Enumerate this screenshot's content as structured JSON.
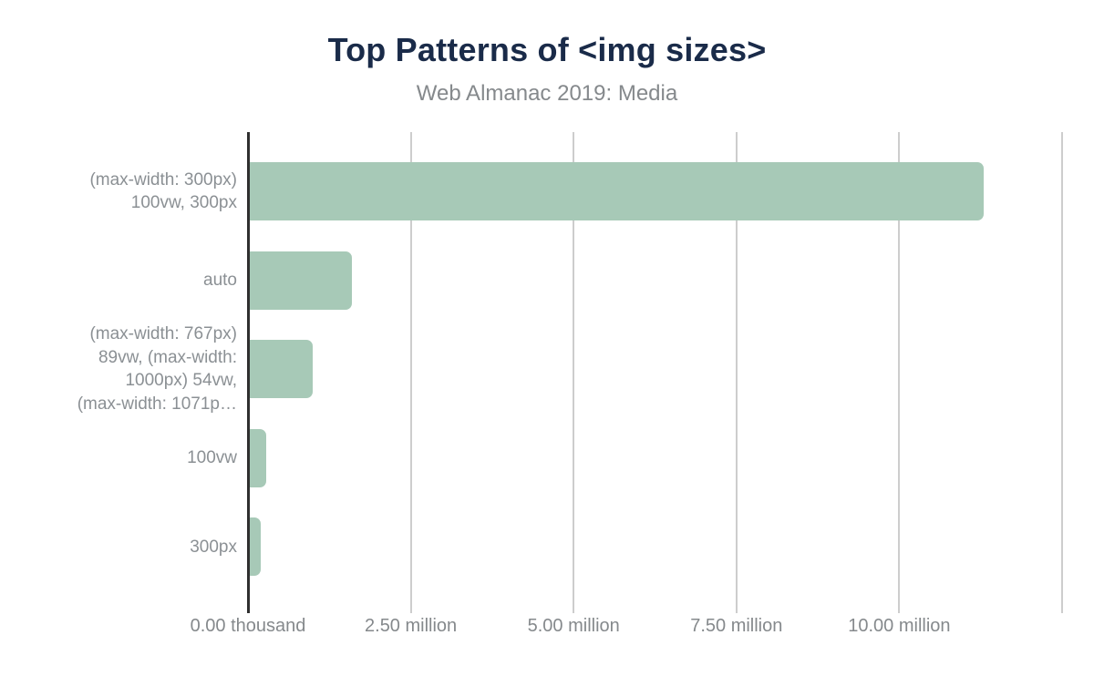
{
  "header": {
    "title": "Top Patterns of <img sizes>",
    "subtitle": "Web Almanac 2019: Media"
  },
  "chart_data": {
    "type": "bar",
    "orientation": "horizontal",
    "title": "Top Patterns of <img sizes>",
    "subtitle": "Web Almanac 2019: Media",
    "categories": [
      "(max-width: 300px) 100vw, 300px",
      "auto",
      "(max-width: 767px) 89vw, (max-width: 1000px) 54vw, (max-width: 1071p…",
      "100vw",
      "300px"
    ],
    "category_label_lines": [
      [
        "(max-width: 300px)",
        "100vw, 300px"
      ],
      [
        "auto"
      ],
      [
        "(max-width: 767px)",
        "89vw, (max-width:",
        "1000px) 54vw,",
        "(max-width: 1071p…"
      ],
      [
        "100vw"
      ],
      [
        "300px"
      ]
    ],
    "values": [
      11300000,
      1600000,
      1000000,
      280000,
      190000
    ],
    "xlabel": "",
    "ylabel": "",
    "xlim": [
      0,
      12780000
    ],
    "x_ticks": [
      {
        "value": 0,
        "label": "0.00 thousand"
      },
      {
        "value": 2500000,
        "label": "2.50 million"
      },
      {
        "value": 5000000,
        "label": "5.00 million"
      },
      {
        "value": 7500000,
        "label": "7.50 million"
      },
      {
        "value": 10000000,
        "label": "10.00 million"
      },
      {
        "value": 12500000,
        "label": ""
      }
    ],
    "grid": "vertical",
    "legend": false,
    "colors": {
      "bar": "#a7c9b7",
      "title": "#1a2b49",
      "secondary_text": "#85898c",
      "gridline": "#cdcdcd",
      "axis_line": "#2f2f2f",
      "background": "#ffffff"
    }
  }
}
